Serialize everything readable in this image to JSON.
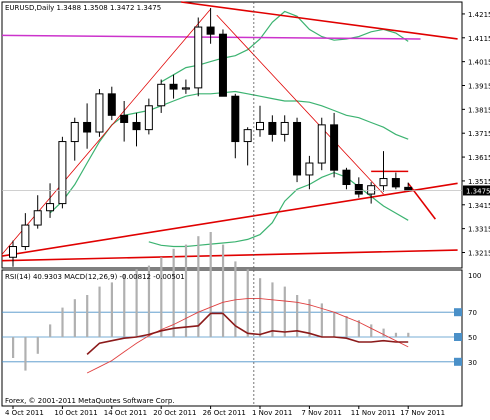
{
  "main_header": "EURUSD,Daily  1.3488 1.3508 1.3472 1.3475",
  "sub_header": "RSI(14) 40.9303  MACD(12,26,9) -0.00812 -0.00501",
  "copyright": "Forex, © 2001-2011 MetaQuotes Software Corp.",
  "current_price": "1.3475",
  "colors": {
    "bull_candle": "#ffffff",
    "bear_candle": "#000000",
    "bollinger": "#3cb371",
    "trendline": "#e00000",
    "ma_line": "#cc33cc",
    "macd_hist": "#b0b0b0",
    "rsi": "#8b1a1a",
    "macd_signal": "#e04040",
    "level_line": "#4a90c8",
    "price_label_bg": "#000000"
  },
  "chart_data": [
    {
      "type": "candlestick",
      "symbol": "EURUSD",
      "timeframe": "Daily",
      "title": "EURUSD,Daily",
      "ohlc_last": {
        "open": 1.3488,
        "high": 1.3508,
        "low": 1.3472,
        "close": 1.3475
      },
      "y_ticks": [
        "1.4215",
        "1.4115",
        "1.4015",
        "1.3915",
        "1.3815",
        "1.3715",
        "1.3615",
        "1.3515",
        "1.3415",
        "1.3315",
        "1.3215"
      ],
      "ylim": [
        1.315,
        1.4265
      ],
      "x_ticks": [
        {
          "label": "4 Oct 2011",
          "index": 0
        },
        {
          "label": "10 Oct 2011",
          "index": 4
        },
        {
          "label": "14 Oct 2011",
          "index": 8
        },
        {
          "label": "20 Oct 2011",
          "index": 12
        },
        {
          "label": "26 Oct 2011",
          "index": 16
        },
        {
          "label": "1 Nov 2011",
          "index": 20
        },
        {
          "label": "7 Nov 2011",
          "index": 24
        },
        {
          "label": "11 Nov 2011",
          "index": 28
        },
        {
          "label": "17 Nov 2011",
          "index": 32
        }
      ],
      "candles": [
        {
          "o": 1.3195,
          "h": 1.3265,
          "l": 1.3155,
          "c": 1.324
        },
        {
          "o": 1.324,
          "h": 1.338,
          "l": 1.3225,
          "c": 1.333
        },
        {
          "o": 1.333,
          "h": 1.3455,
          "l": 1.3315,
          "c": 1.339
        },
        {
          "o": 1.339,
          "h": 1.3505,
          "l": 1.336,
          "c": 1.342
        },
        {
          "o": 1.342,
          "h": 1.37,
          "l": 1.34,
          "c": 1.368
        },
        {
          "o": 1.368,
          "h": 1.378,
          "l": 1.36,
          "c": 1.376
        },
        {
          "o": 1.376,
          "h": 1.384,
          "l": 1.365,
          "c": 1.372
        },
        {
          "o": 1.372,
          "h": 1.39,
          "l": 1.37,
          "c": 1.388
        },
        {
          "o": 1.388,
          "h": 1.391,
          "l": 1.377,
          "c": 1.379
        },
        {
          "o": 1.379,
          "h": 1.385,
          "l": 1.368,
          "c": 1.376
        },
        {
          "o": 1.376,
          "h": 1.38,
          "l": 1.366,
          "c": 1.373
        },
        {
          "o": 1.373,
          "h": 1.386,
          "l": 1.371,
          "c": 1.383
        },
        {
          "o": 1.383,
          "h": 1.394,
          "l": 1.38,
          "c": 1.392
        },
        {
          "o": 1.392,
          "h": 1.396,
          "l": 1.386,
          "c": 1.39
        },
        {
          "o": 1.39,
          "h": 1.394,
          "l": 1.388,
          "c": 1.3905
        },
        {
          "o": 1.3905,
          "h": 1.42,
          "l": 1.387,
          "c": 1.416
        },
        {
          "o": 1.416,
          "h": 1.424,
          "l": 1.409,
          "c": 1.413
        },
        {
          "o": 1.413,
          "h": 1.415,
          "l": 1.388,
          "c": 1.387
        },
        {
          "o": 1.387,
          "h": 1.388,
          "l": 1.361,
          "c": 1.368
        },
        {
          "o": 1.368,
          "h": 1.374,
          "l": 1.358,
          "c": 1.373
        },
        {
          "o": 1.373,
          "h": 1.383,
          "l": 1.37,
          "c": 1.376
        },
        {
          "o": 1.376,
          "h": 1.379,
          "l": 1.368,
          "c": 1.371
        },
        {
          "o": 1.371,
          "h": 1.379,
          "l": 1.368,
          "c": 1.376
        },
        {
          "o": 1.376,
          "h": 1.378,
          "l": 1.351,
          "c": 1.354
        },
        {
          "o": 1.354,
          "h": 1.362,
          "l": 1.348,
          "c": 1.359
        },
        {
          "o": 1.359,
          "h": 1.378,
          "l": 1.356,
          "c": 1.375
        },
        {
          "o": 1.375,
          "h": 1.38,
          "l": 1.353,
          "c": 1.356
        },
        {
          "o": 1.356,
          "h": 1.357,
          "l": 1.348,
          "c": 1.35
        },
        {
          "o": 1.35,
          "h": 1.353,
          "l": 1.3445,
          "c": 1.346
        },
        {
          "o": 1.346,
          "h": 1.351,
          "l": 1.342,
          "c": 1.3495
        },
        {
          "o": 1.3495,
          "h": 1.364,
          "l": 1.347,
          "c": 1.3525
        },
        {
          "o": 1.3525,
          "h": 1.355,
          "l": 1.348,
          "c": 1.349
        },
        {
          "o": 1.3488,
          "h": 1.3508,
          "l": 1.3472,
          "c": 1.3475
        }
      ],
      "bollinger_upper": [
        1.393,
        1.396,
        1.399,
        1.4,
        1.4015,
        1.403,
        1.404,
        1.4065,
        1.411,
        1.418,
        1.4225,
        1.4205,
        1.415,
        1.412,
        1.4105,
        1.411,
        1.412,
        1.414,
        1.415,
        1.4135,
        1.41
      ],
      "bollinger_upper_start": 12,
      "bollinger_middle": [
        1.338,
        1.343,
        1.35,
        1.359,
        1.368,
        1.375,
        1.379,
        1.38,
        1.381,
        1.383,
        1.385,
        1.387,
        1.388,
        1.388,
        1.3885,
        1.389,
        1.388,
        1.387,
        1.386,
        1.385,
        1.385,
        1.3845,
        1.383,
        1.381,
        1.379,
        1.378,
        1.376,
        1.374,
        1.371,
        1.369
      ],
      "bollinger_middle_start": 3,
      "bollinger_lower": [
        1.326,
        1.3245,
        1.324,
        1.324,
        1.3245,
        1.325,
        1.3255,
        1.326,
        1.327,
        1.329,
        1.334,
        1.343,
        1.348,
        1.35,
        1.353,
        1.355,
        1.353,
        1.349,
        1.345,
        1.341,
        1.338,
        1.335
      ],
      "bollinger_lower_start": 11,
      "ma_line": {
        "from_index": -1,
        "to_index": 33,
        "from_value": 1.4125,
        "to_value": 1.411
      },
      "trendlines": [
        {
          "i1": -1.5,
          "p1": 1.317,
          "i2": 16,
          "p2": 1.4235
        },
        {
          "i1": 16.5,
          "p1": 1.421,
          "i2": 30,
          "p2": 1.346
        },
        {
          "i1": -1.5,
          "p1": 1.3195,
          "i2": 36,
          "p2": 1.3505
        },
        {
          "i1": -1.5,
          "p1": 1.318,
          "i2": 36,
          "p2": 1.3225
        },
        {
          "i1": 10,
          "p1": 1.429,
          "i2": 36,
          "p2": 1.411
        },
        {
          "i1": 29,
          "p1": 1.3555,
          "i2": 32,
          "p2": 1.3555
        },
        {
          "i1": 32,
          "p1": 1.3505,
          "i2": 34.2,
          "p2": 1.3355
        }
      ],
      "vline_index": 19.5,
      "hline_value": 1.3475
    },
    {
      "type": "indicator",
      "title": "RSI(14) 40.9303 MACD(12,26,9) -0.00812 -0.00501",
      "rsi_value": 40.9303,
      "macd": -0.00812,
      "signal": -0.00501,
      "y_ticks": [
        "100",
        "70",
        "50",
        "30"
      ],
      "levels": [
        70,
        50,
        30
      ],
      "macd_hist": [
        -5,
        -8,
        -4,
        3,
        7,
        9,
        10,
        12,
        13,
        15,
        16,
        17,
        19,
        21,
        22,
        24,
        25,
        22,
        18,
        16,
        14,
        13,
        12,
        10,
        9,
        8,
        6,
        5,
        4,
        3,
        2,
        1,
        1
      ],
      "rsi": [
        null,
        null,
        null,
        null,
        null,
        null,
        36,
        45,
        47,
        49,
        50,
        52,
        55,
        57,
        58,
        59,
        69,
        69,
        59,
        53,
        52,
        55,
        54,
        55,
        53,
        50,
        50,
        49,
        46,
        46,
        47,
        46,
        46
      ],
      "macd_signal_line": [
        null,
        null,
        null,
        null,
        null,
        null,
        21,
        26,
        31,
        38,
        45,
        51,
        56,
        60,
        65,
        70,
        74,
        78,
        80,
        81,
        81,
        80,
        79,
        78,
        76,
        73,
        70,
        66,
        62,
        57,
        52,
        47,
        42
      ]
    }
  ]
}
